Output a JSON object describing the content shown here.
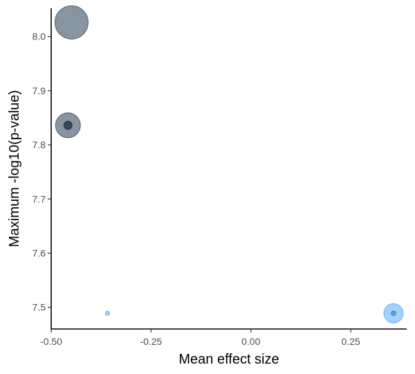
{
  "chart_data": {
    "type": "scatter",
    "title": "",
    "xlabel": "Mean effect size",
    "ylabel": "Maximum -log10(p-value)",
    "xlim": [
      -0.5,
      0.39
    ],
    "ylim": [
      7.46,
      8.052
    ],
    "x_ticks": [
      -0.5,
      -0.25,
      0.0,
      0.25
    ],
    "x_tick_labels": [
      "-0.50",
      "-0.25",
      "0.00",
      "0.25"
    ],
    "y_ticks": [
      7.5,
      7.6,
      7.7,
      7.8,
      7.9,
      8.0
    ],
    "y_tick_labels": [
      "7.5",
      "7.6",
      "7.7",
      "7.8",
      "7.9",
      "8.0"
    ],
    "grid": false,
    "legend": "none",
    "points": [
      {
        "x": -0.449,
        "y": 8.026,
        "size": 24,
        "color": "#3a4c63",
        "opacity": 0.6
      },
      {
        "x": -0.458,
        "y": 7.836,
        "size": 18,
        "color": "#3a4c63",
        "opacity": 0.6
      },
      {
        "x": -0.458,
        "y": 7.836,
        "size": 6,
        "color": "#1f3047",
        "opacity": 0.75
      },
      {
        "x": -0.359,
        "y": 7.489,
        "size": 3.2,
        "color": "#5aaaf5",
        "opacity": 0.55
      },
      {
        "x": 0.357,
        "y": 7.489,
        "size": 14,
        "color": "#5aaaf5",
        "opacity": 0.55
      },
      {
        "x": 0.357,
        "y": 7.489,
        "size": 3.5,
        "color": "#3d8fe0",
        "opacity": 0.8
      }
    ]
  }
}
